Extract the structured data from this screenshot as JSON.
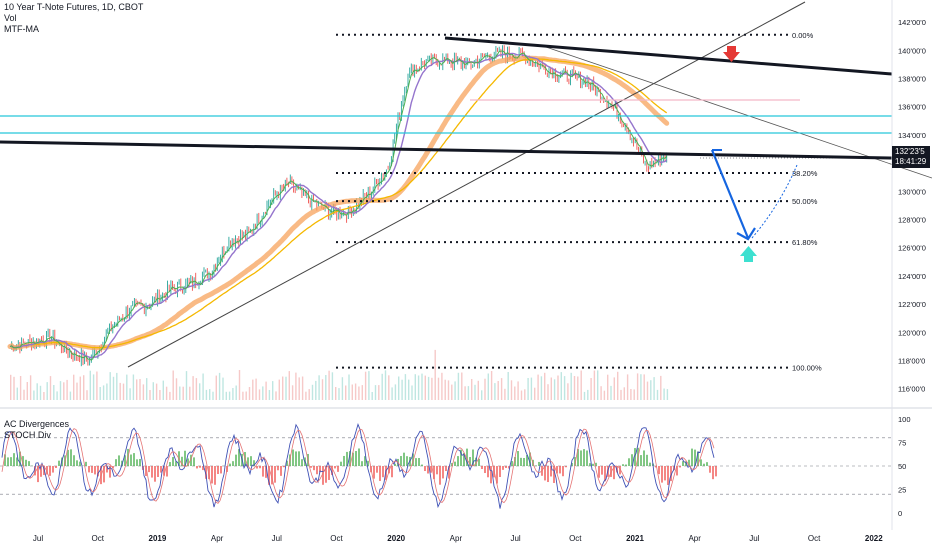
{
  "header": {
    "instrument": "10 Year T-Note Futures, 1D, CBOT",
    "indicators": [
      "Vol",
      "MTF-MA"
    ]
  },
  "oscillator": {
    "indicators": [
      "AC Divergences",
      "STOCH Div"
    ]
  },
  "price_axis_labels": [
    "142'00'0",
    "140'00'0",
    "138'00'0",
    "136'00'0",
    "134'00'0",
    "132'00'0",
    "130'00'0",
    "128'00'0",
    "126'00'0",
    "124'00'0",
    "122'00'0",
    "120'00'0",
    "118'00'0",
    "116'00'0"
  ],
  "osc_axis_labels": [
    "100",
    "75",
    "50",
    "25",
    "0"
  ],
  "time_axis_labels": [
    "Jul",
    "Oct",
    "2019",
    "Apr",
    "Jul",
    "Oct",
    "2020",
    "Apr",
    "Jul",
    "Oct",
    "2021",
    "Apr",
    "Jul",
    "Oct",
    "2022"
  ],
  "current_price": {
    "price": "132'23'5",
    "countdown": "18:41:29"
  },
  "fib_levels": [
    {
      "label": "0.00%",
      "price": 141.1
    },
    {
      "label": "38.20%",
      "price": 131.3
    },
    {
      "label": "50.00%",
      "price": 129.3
    },
    {
      "label": "61.80%",
      "price": 126.4
    },
    {
      "label": "100.00%",
      "price": 117.5
    }
  ],
  "colors": {
    "price_up": "#26a69a",
    "price_down": "#ef5350",
    "ma_fast": "#4caf50",
    "ma_purple": "#9575cd",
    "ma_orange": "#f7a35c",
    "ma_yellow": "#f5b800",
    "cyan_level": "#26c6da",
    "projection": "#1565e0",
    "arrow_down": "#e53935",
    "arrow_up": "#3de0d0",
    "trendline": "#131722"
  },
  "chart_data": {
    "type": "line",
    "title": "10 Year T-Note Futures, 1D, CBOT",
    "x": [
      "Jul 2018",
      "Aug 2018",
      "Sep 2018",
      "Oct 2018",
      "Nov 2018",
      "Dec 2018",
      "Jan 2019",
      "Feb 2019",
      "Mar 2019",
      "Apr 2019",
      "May 2019",
      "Jun 2019",
      "Jul 2019",
      "Aug 2019",
      "Sep 2019",
      "Oct 2019",
      "Nov 2019",
      "Dec 2019",
      "Jan 2020",
      "Feb 2020",
      "Mar 2020",
      "Apr 2020",
      "May 2020",
      "Jun 2020",
      "Jul 2020",
      "Aug 2020",
      "Sep 2020",
      "Oct 2020",
      "Nov 2020",
      "Dec 2020",
      "Jan 2021",
      "Feb 2021",
      "Mar 2021",
      "Apr 2021"
    ],
    "series": [
      {
        "name": "",
        "values": [
          119.0,
          119.3,
          119.6,
          118.6,
          118.0,
          120.2,
          121.6,
          122.0,
          123.0,
          123.4,
          124.2,
          126.4,
          127.0,
          129.2,
          130.6,
          129.4,
          128.6,
          128.5,
          129.8,
          131.7,
          138.4,
          139.2,
          139.3,
          139.0,
          139.6,
          139.8,
          139.5,
          138.6,
          138.2,
          137.8,
          136.5,
          134.6,
          131.7,
          132.7
        ]
      }
    ],
    "ylim": [
      115.2,
      143.0
    ],
    "osc_ylim": [
      0,
      100
    ],
    "grid": false
  }
}
